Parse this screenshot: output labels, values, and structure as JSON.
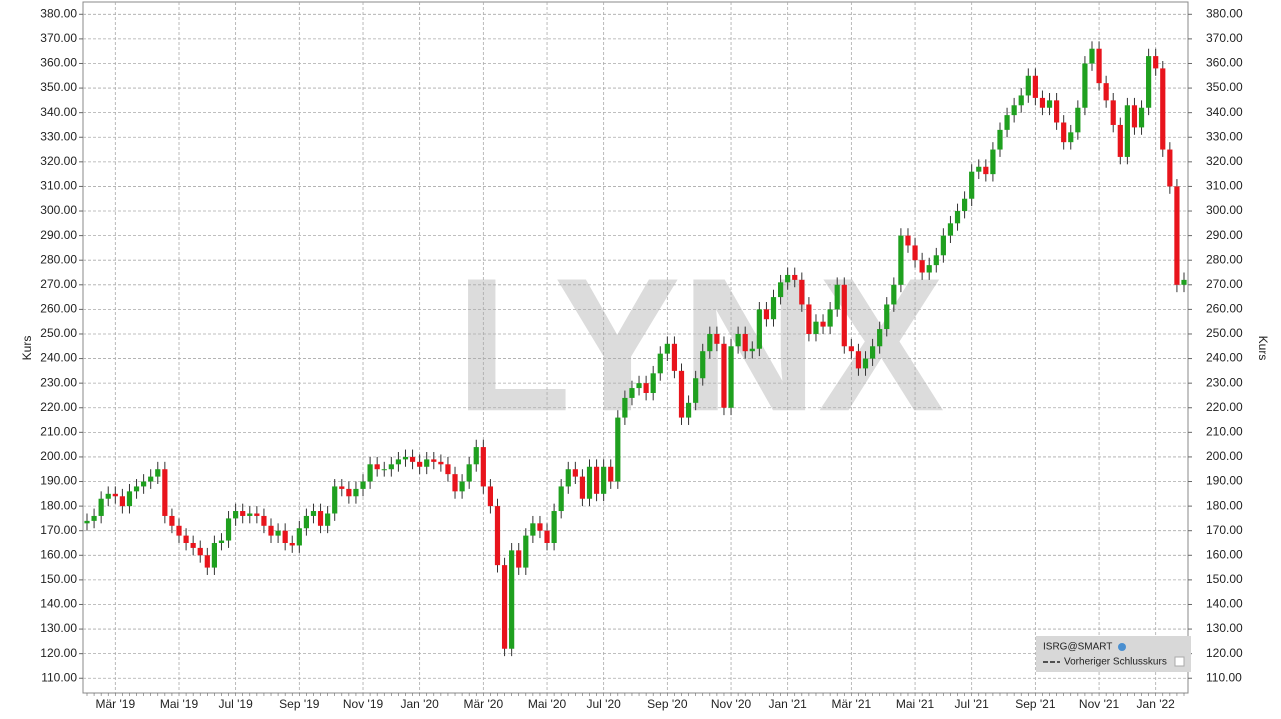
{
  "chart_data": {
    "type": "candlestick",
    "y_label": "Kurs",
    "watermark": "LYNX",
    "legend": {
      "position": "lower right",
      "symbol": "ISRG@SMART",
      "entry": "Vorheriger Schlusskurs"
    },
    "up_color": "#1fa01f",
    "down_color": "#e8141c",
    "grid": true,
    "ylim": [
      104,
      385
    ],
    "yticks": [
      {
        "value": 110,
        "label": "110.00"
      },
      {
        "value": 120,
        "label": "120.00"
      },
      {
        "value": 130,
        "label": "130.00"
      },
      {
        "value": 140,
        "label": "140.00"
      },
      {
        "value": 150,
        "label": "150.00"
      },
      {
        "value": 160,
        "label": "160.00"
      },
      {
        "value": 170,
        "label": "170.00"
      },
      {
        "value": 180,
        "label": "180.00"
      },
      {
        "value": 190,
        "label": "190.00"
      },
      {
        "value": 200,
        "label": "200.00"
      },
      {
        "value": 210,
        "label": "210.00"
      },
      {
        "value": 220,
        "label": "220.00"
      },
      {
        "value": 230,
        "label": "230.00"
      },
      {
        "value": 240,
        "label": "240.00"
      },
      {
        "value": 250,
        "label": "250.00"
      },
      {
        "value": 260,
        "label": "260.00"
      },
      {
        "value": 270,
        "label": "270.00"
      },
      {
        "value": 280,
        "label": "280.00"
      },
      {
        "value": 290,
        "label": "290.00"
      },
      {
        "value": 300,
        "label": "300.00"
      },
      {
        "value": 310,
        "label": "310.00"
      },
      {
        "value": 320,
        "label": "320.00"
      },
      {
        "value": 330,
        "label": "330.00"
      },
      {
        "value": 340,
        "label": "340.00"
      },
      {
        "value": 350,
        "label": "350.00"
      },
      {
        "value": 360,
        "label": "360.00"
      },
      {
        "value": 370,
        "label": "370.00"
      },
      {
        "value": 380,
        "label": "380.00"
      }
    ],
    "categories": [
      null,
      null,
      null,
      null,
      "Mär '19",
      null,
      null,
      null,
      null,
      null,
      null,
      null,
      null,
      "Mai '19",
      null,
      null,
      null,
      null,
      null,
      null,
      null,
      "Jul '19",
      null,
      null,
      null,
      null,
      null,
      null,
      null,
      null,
      "Sep '19",
      null,
      null,
      null,
      null,
      null,
      null,
      null,
      null,
      "Nov '19",
      null,
      null,
      null,
      null,
      null,
      null,
      null,
      "Jan '20",
      null,
      null,
      null,
      null,
      null,
      null,
      null,
      null,
      "Mär '20",
      null,
      null,
      null,
      null,
      null,
      null,
      null,
      null,
      "Mai '20",
      null,
      null,
      null,
      null,
      null,
      null,
      null,
      "Jul '20",
      null,
      null,
      null,
      null,
      null,
      null,
      null,
      null,
      "Sep '20",
      null,
      null,
      null,
      null,
      null,
      null,
      null,
      null,
      "Nov '20",
      null,
      null,
      null,
      null,
      null,
      null,
      null,
      "Jan '21",
      null,
      null,
      null,
      null,
      null,
      null,
      null,
      null,
      "Mär '21",
      null,
      null,
      null,
      null,
      null,
      null,
      null,
      null,
      "Mai '21",
      null,
      null,
      null,
      null,
      null,
      null,
      null,
      "Jul '21",
      null,
      null,
      null,
      null,
      null,
      null,
      null,
      null,
      "Sep '21",
      null,
      null,
      null,
      null,
      null,
      null,
      null,
      null,
      "Nov '21",
      null,
      null,
      null,
      null,
      null,
      null,
      null,
      "Jan '22",
      null,
      null,
      null,
      null
    ],
    "open": [
      173,
      174,
      176,
      183,
      185,
      184,
      180,
      186,
      188,
      190,
      192,
      195,
      176,
      172,
      168,
      165,
      163,
      160,
      155,
      165,
      166,
      175,
      178,
      176,
      177,
      176,
      172,
      168,
      170,
      165,
      164,
      171,
      176,
      178,
      172,
      177,
      188,
      187,
      184,
      187,
      190,
      197,
      195,
      195,
      197,
      199,
      200,
      198,
      196,
      199,
      198,
      197,
      193,
      186,
      190,
      197,
      204,
      188,
      180,
      156,
      122,
      162,
      155,
      168,
      173,
      170,
      165,
      178,
      188,
      195,
      192,
      183,
      196,
      185,
      196,
      190,
      216,
      224,
      228,
      230,
      226,
      234,
      242,
      246,
      235,
      216,
      222,
      232,
      243,
      250,
      246,
      220,
      245,
      250,
      243,
      244,
      260,
      256,
      265,
      271,
      274,
      272,
      262,
      250,
      255,
      253,
      260,
      270,
      245,
      243,
      236,
      240,
      245,
      252,
      262,
      270,
      290,
      286,
      280,
      275,
      278,
      282,
      290,
      295,
      300,
      305,
      316,
      318,
      315,
      325,
      333,
      339,
      343,
      347,
      355,
      346,
      342,
      345,
      336,
      328,
      332,
      342,
      360,
      366,
      352,
      345,
      335,
      322,
      343,
      334,
      342,
      363,
      358,
      325,
      310,
      270
    ],
    "high": [
      177,
      179,
      186,
      188,
      188,
      187,
      189,
      191,
      193,
      195,
      198,
      198,
      179,
      175,
      171,
      168,
      166,
      163,
      168,
      169,
      178,
      181,
      181,
      180,
      180,
      179,
      175,
      173,
      173,
      168,
      174,
      179,
      181,
      181,
      180,
      191,
      191,
      190,
      190,
      193,
      200,
      200,
      198,
      200,
      202,
      203,
      203,
      201,
      202,
      202,
      201,
      200,
      196,
      193,
      200,
      207,
      207,
      191,
      183,
      159,
      165,
      165,
      171,
      176,
      176,
      173,
      181,
      191,
      198,
      198,
      195,
      199,
      199,
      199,
      199,
      219,
      227,
      231,
      233,
      233,
      237,
      245,
      249,
      249,
      238,
      225,
      235,
      246,
      253,
      253,
      249,
      248,
      253,
      253,
      247,
      263,
      263,
      268,
      274,
      277,
      277,
      275,
      265,
      258,
      258,
      263,
      273,
      273,
      248,
      246,
      243,
      248,
      255,
      265,
      273,
      293,
      293,
      289,
      283,
      281,
      285,
      293,
      298,
      303,
      308,
      319,
      321,
      321,
      328,
      336,
      342,
      346,
      350,
      358,
      358,
      349,
      348,
      348,
      339,
      335,
      345,
      363,
      369,
      369,
      355,
      348,
      338,
      346,
      346,
      345,
      366,
      366,
      361,
      328,
      313,
      275
    ],
    "low": [
      170,
      171,
      173,
      180,
      181,
      177,
      177,
      183,
      185,
      187,
      189,
      173,
      169,
      165,
      162,
      160,
      157,
      152,
      152,
      162,
      163,
      172,
      173,
      173,
      173,
      169,
      165,
      165,
      162,
      161,
      161,
      168,
      173,
      169,
      169,
      174,
      184,
      181,
      181,
      184,
      187,
      192,
      192,
      192,
      194,
      196,
      195,
      193,
      193,
      195,
      194,
      190,
      183,
      183,
      187,
      194,
      185,
      177,
      153,
      119,
      119,
      152,
      152,
      165,
      167,
      162,
      162,
      175,
      185,
      189,
      180,
      180,
      182,
      182,
      187,
      187,
      213,
      221,
      225,
      223,
      223,
      231,
      239,
      232,
      213,
      213,
      219,
      229,
      240,
      243,
      217,
      217,
      242,
      240,
      240,
      241,
      253,
      253,
      262,
      268,
      269,
      259,
      247,
      247,
      250,
      250,
      257,
      242,
      240,
      233,
      233,
      237,
      242,
      249,
      259,
      267,
      283,
      277,
      272,
      272,
      275,
      279,
      287,
      292,
      297,
      302,
      313,
      312,
      312,
      322,
      330,
      336,
      340,
      344,
      343,
      339,
      339,
      333,
      325,
      325,
      329,
      339,
      357,
      349,
      342,
      332,
      319,
      319,
      331,
      331,
      339,
      355,
      322,
      307,
      267,
      267
    ],
    "close": [
      174,
      176,
      183,
      185,
      184,
      180,
      186,
      188,
      190,
      192,
      195,
      176,
      172,
      168,
      165,
      163,
      160,
      155,
      165,
      166,
      175,
      178,
      176,
      177,
      176,
      172,
      168,
      170,
      165,
      164,
      171,
      176,
      178,
      172,
      177,
      188,
      187,
      184,
      187,
      190,
      197,
      195,
      195,
      197,
      199,
      200,
      198,
      196,
      199,
      198,
      197,
      193,
      186,
      190,
      197,
      204,
      188,
      180,
      156,
      122,
      162,
      155,
      168,
      173,
      170,
      165,
      178,
      188,
      195,
      192,
      183,
      196,
      185,
      196,
      190,
      216,
      224,
      228,
      230,
      226,
      234,
      242,
      246,
      235,
      216,
      222,
      232,
      243,
      250,
      246,
      220,
      245,
      250,
      243,
      244,
      260,
      256,
      265,
      271,
      274,
      272,
      262,
      250,
      255,
      253,
      260,
      270,
      245,
      243,
      236,
      240,
      245,
      252,
      262,
      270,
      290,
      286,
      280,
      275,
      278,
      282,
      290,
      295,
      300,
      305,
      316,
      318,
      315,
      325,
      333,
      339,
      343,
      347,
      355,
      346,
      342,
      345,
      336,
      328,
      332,
      342,
      360,
      366,
      352,
      345,
      335,
      322,
      343,
      334,
      342,
      363,
      358,
      325,
      310,
      270,
      272
    ]
  }
}
